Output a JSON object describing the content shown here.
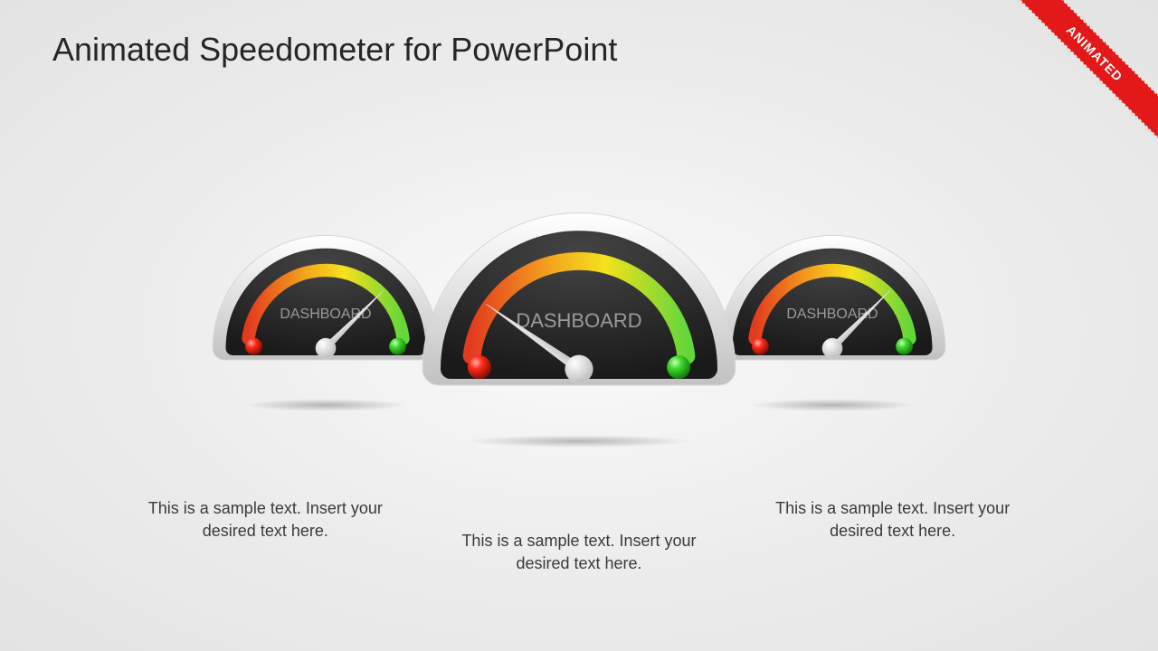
{
  "title": {
    "text": "Animated Speedometer for PowerPoint",
    "fontsize": 36,
    "color": "#262626"
  },
  "ribbon": {
    "text": "ANIMATED",
    "bg": "#e31919",
    "textcolor": "#ffffff"
  },
  "gauges": [
    {
      "id": "left",
      "size": 260,
      "label": "DASHBOARD",
      "needle_angle": 45,
      "face_dark": "#1a1a1a",
      "face_light": "#444444",
      "bezel_light": "#ffffff",
      "bezel_dark": "#c2c2c2",
      "arc_stop1": "#e23a1f",
      "arc_stop2": "#f4a71d",
      "arc_stop3": "#f4e21d",
      "arc_stop4": "#63d63a",
      "dot_red": "#ff2a1a",
      "dot_green": "#3bd82b",
      "label_color": "#9a9a9a",
      "label_fontsize": 16
    },
    {
      "id": "center",
      "size": 360,
      "label": "DASHBOARD",
      "needle_angle": -55,
      "face_dark": "#1a1a1a",
      "face_light": "#444444",
      "bezel_light": "#ffffff",
      "bezel_dark": "#c2c2c2",
      "arc_stop1": "#e23a1f",
      "arc_stop2": "#f4a71d",
      "arc_stop3": "#f4e21d",
      "arc_stop4": "#63d63a",
      "dot_red": "#ff2a1a",
      "dot_green": "#3bd82b",
      "label_color": "#9a9a9a",
      "label_fontsize": 22
    },
    {
      "id": "right",
      "size": 260,
      "label": "DASHBOARD",
      "needle_angle": 45,
      "face_dark": "#1a1a1a",
      "face_light": "#444444",
      "bezel_light": "#ffffff",
      "bezel_dark": "#c2c2c2",
      "arc_stop1": "#e23a1f",
      "arc_stop2": "#f4a71d",
      "arc_stop3": "#f4e21d",
      "arc_stop4": "#63d63a",
      "dot_red": "#ff2a1a",
      "dot_green": "#3bd82b",
      "label_color": "#9a9a9a",
      "label_fontsize": 16
    }
  ],
  "captions": [
    {
      "text": "This is a sample text. Insert your desired text here.",
      "color": "#3a3a3a"
    },
    {
      "text": "This is a sample text. Insert your desired text here.",
      "color": "#3a3a3a"
    },
    {
      "text": "This is a sample text. Insert your desired text here.",
      "color": "#3a3a3a"
    }
  ]
}
